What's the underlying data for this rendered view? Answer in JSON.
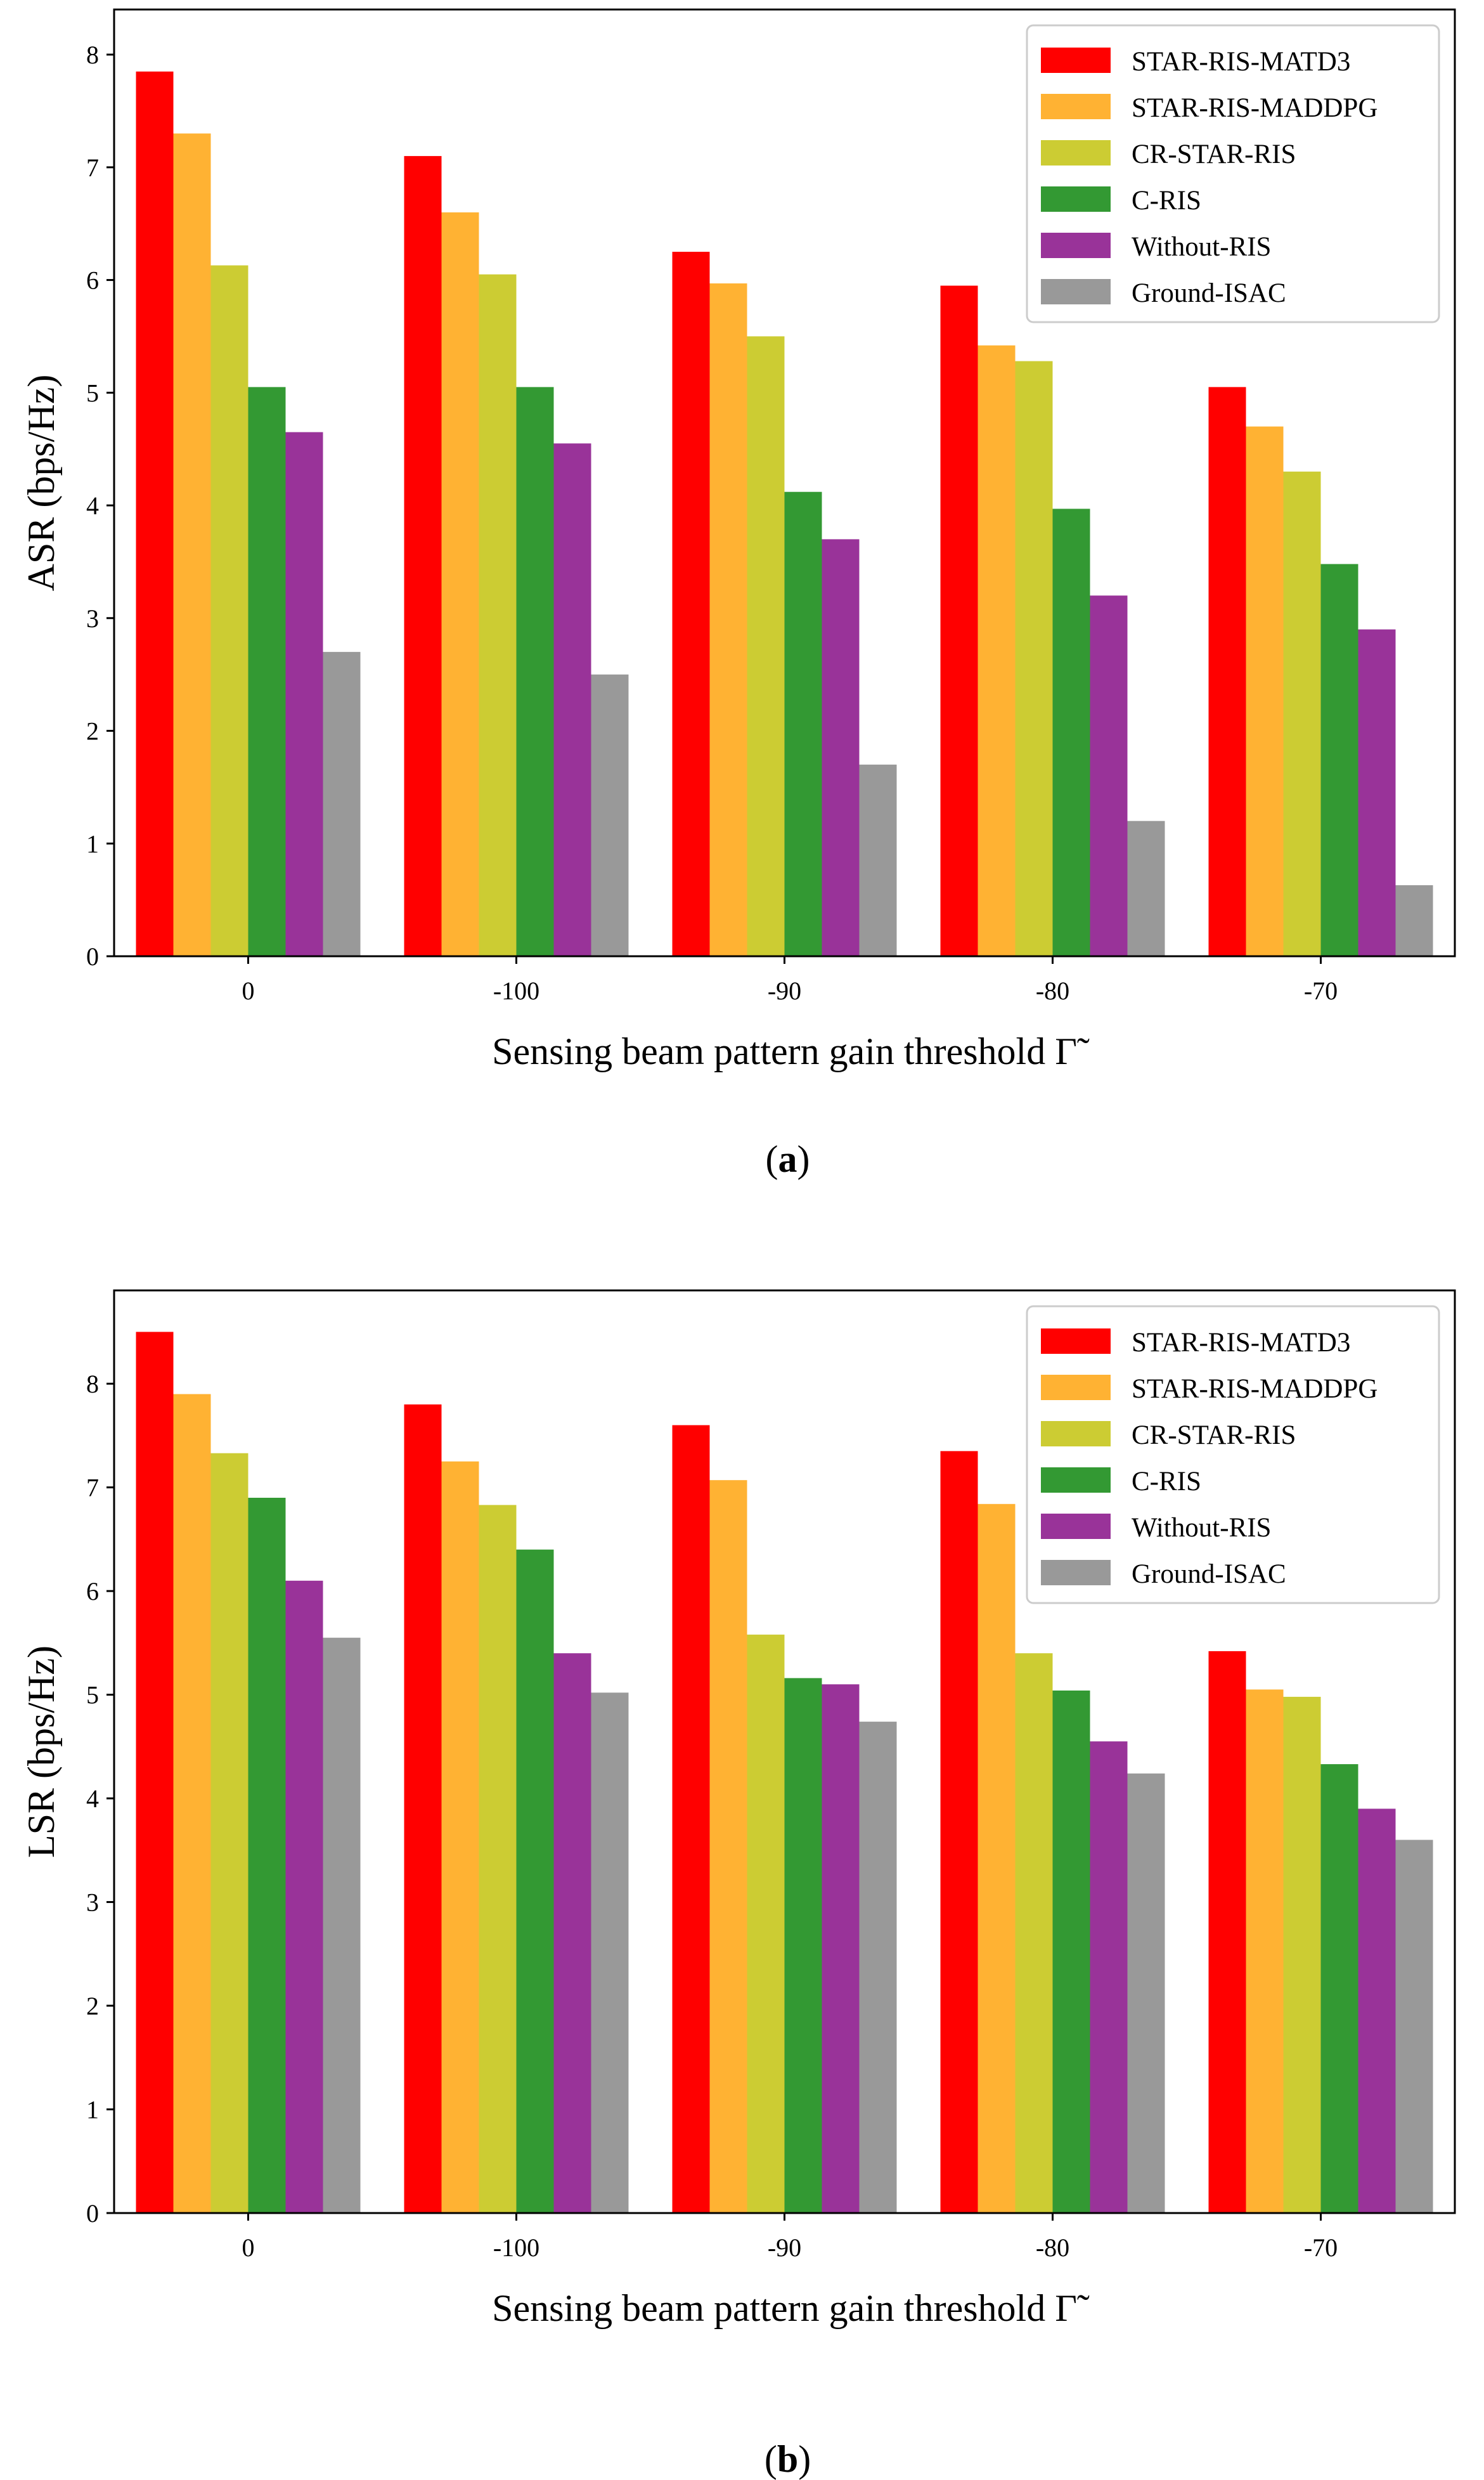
{
  "colors": {
    "STAR-RIS-MATD3": "#ff0000",
    "STAR-RIS-MADDPG": "#ffb233",
    "CR-STAR-RIS": "#cccc33",
    "C-RIS": "#339933",
    "Without-RIS": "#993399",
    "Ground-ISAC": "#999999"
  },
  "chart_data": [
    {
      "type": "bar",
      "caption_letter": "a",
      "categories": [
        "0",
        "-100",
        "-90",
        "-80",
        "-70"
      ],
      "xlabel": "Sensing beam pattern gain threshold",
      "xlabel_symbol": "Γ̃",
      "ylabel": "ASR (bps/Hz)",
      "ylim": [
        0,
        8.4
      ],
      "yticks": [
        0,
        1,
        2,
        3,
        4,
        5,
        6,
        7,
        8
      ],
      "legend_position": "top-right",
      "grid": false,
      "series": [
        {
          "name": "STAR-RIS-MATD3",
          "values": [
            7.85,
            7.1,
            6.25,
            5.95,
            5.05
          ]
        },
        {
          "name": "STAR-RIS-MADDPG",
          "values": [
            7.3,
            6.6,
            5.97,
            5.42,
            4.7
          ]
        },
        {
          "name": "CR-STAR-RIS",
          "values": [
            6.13,
            6.05,
            5.5,
            5.28,
            4.3
          ]
        },
        {
          "name": "C-RIS",
          "values": [
            5.05,
            5.05,
            4.12,
            3.97,
            3.48
          ]
        },
        {
          "name": "Without-RIS",
          "values": [
            4.65,
            4.55,
            3.7,
            3.2,
            2.9
          ]
        },
        {
          "name": "Ground-ISAC",
          "values": [
            2.7,
            2.5,
            1.7,
            1.2,
            0.63
          ]
        }
      ]
    },
    {
      "type": "bar",
      "caption_letter": "b",
      "categories": [
        "0",
        "-100",
        "-90",
        "-80",
        "-70"
      ],
      "xlabel": "Sensing beam pattern gain threshold",
      "xlabel_symbol": "Γ̃",
      "ylabel": "LSR (bps/Hz)",
      "ylim": [
        0,
        8.9
      ],
      "yticks": [
        0,
        1,
        2,
        3,
        4,
        5,
        6,
        7,
        8
      ],
      "legend_position": "top-right",
      "grid": false,
      "series": [
        {
          "name": "STAR-RIS-MATD3",
          "values": [
            8.5,
            7.8,
            7.6,
            7.35,
            5.42
          ]
        },
        {
          "name": "STAR-RIS-MADDPG",
          "values": [
            7.9,
            7.25,
            7.07,
            6.84,
            5.05
          ]
        },
        {
          "name": "CR-STAR-RIS",
          "values": [
            7.33,
            6.83,
            5.58,
            5.4,
            4.98
          ]
        },
        {
          "name": "C-RIS",
          "values": [
            6.9,
            6.4,
            5.16,
            5.04,
            4.33
          ]
        },
        {
          "name": "Without-RIS",
          "values": [
            6.1,
            5.4,
            5.1,
            4.55,
            3.9
          ]
        },
        {
          "name": "Ground-ISAC",
          "values": [
            5.55,
            5.02,
            4.74,
            4.24,
            3.6
          ]
        }
      ]
    }
  ]
}
